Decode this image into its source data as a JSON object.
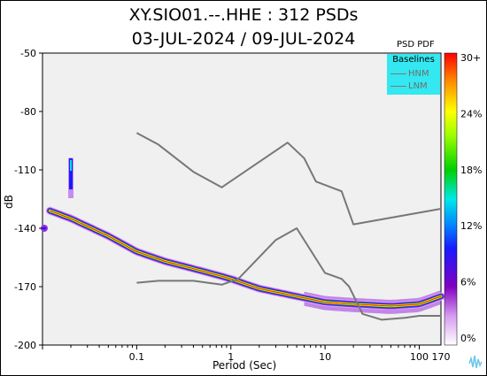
{
  "title_line1": "XY.SIO01.--.HHE : 312 PSDs",
  "title_line2": "03-JUL-2024 / 09-JUL-2024",
  "colorbar_title": "PSD PDF",
  "legend": {
    "title": "Baselines",
    "items": [
      "HNM",
      "LNM"
    ]
  },
  "chart_data": {
    "type": "heatmap",
    "xscale": "log",
    "xlabel": "Period (Sec)",
    "ylabel": "dB",
    "xlim": [
      0.01,
      170
    ],
    "ylim": [
      -200,
      -50
    ],
    "x_ticks": [
      0.1,
      1,
      10,
      100,
      170
    ],
    "x_tick_labels": [
      "0.1",
      "1",
      "10",
      "100",
      "170"
    ],
    "y_ticks": [
      -50,
      -80,
      -110,
      -140,
      -170,
      -200
    ],
    "colorbar": {
      "ticks": [
        "30+",
        "24%",
        "18%",
        "12%",
        "6%",
        "0%"
      ]
    },
    "series": [
      {
        "name": "HNM",
        "color": "#777777",
        "points": [
          [
            0.1,
            -91
          ],
          [
            0.17,
            -97
          ],
          [
            0.4,
            -111
          ],
          [
            0.8,
            -119
          ],
          [
            4.0,
            -96
          ],
          [
            6.0,
            -104
          ],
          [
            8.0,
            -116
          ],
          [
            15.0,
            -121
          ],
          [
            20.0,
            -138
          ],
          [
            170,
            -130
          ]
        ]
      },
      {
        "name": "LNM",
        "color": "#777777",
        "points": [
          [
            0.1,
            -168
          ],
          [
            0.17,
            -167
          ],
          [
            0.4,
            -167
          ],
          [
            0.8,
            -169
          ],
          [
            1.2,
            -166
          ],
          [
            3.0,
            -146
          ],
          [
            5.0,
            -140
          ],
          [
            10.0,
            -163
          ],
          [
            15.0,
            -166
          ],
          [
            18.0,
            -170
          ],
          [
            25.0,
            -184
          ],
          [
            40.0,
            -187
          ],
          [
            70.0,
            -186
          ],
          [
            100.0,
            -185
          ],
          [
            170,
            -185
          ]
        ]
      }
    ],
    "pdf_mode": [
      [
        0.012,
        -131
      ],
      [
        0.02,
        -135
      ],
      [
        0.05,
        -144
      ],
      [
        0.1,
        -152
      ],
      [
        0.2,
        -157
      ],
      [
        0.5,
        -162
      ],
      [
        1.0,
        -166
      ],
      [
        2.0,
        -171
      ],
      [
        5.0,
        -175
      ],
      [
        10.0,
        -178
      ],
      [
        20.0,
        -179
      ],
      [
        50.0,
        -180
      ],
      [
        100.0,
        -179
      ],
      [
        170,
        -175
      ]
    ],
    "pdf_spike": {
      "period": 0.02,
      "db_range": [
        -104,
        -120
      ]
    },
    "pdf_edge": {
      "period": 0.01,
      "db": -140
    }
  }
}
